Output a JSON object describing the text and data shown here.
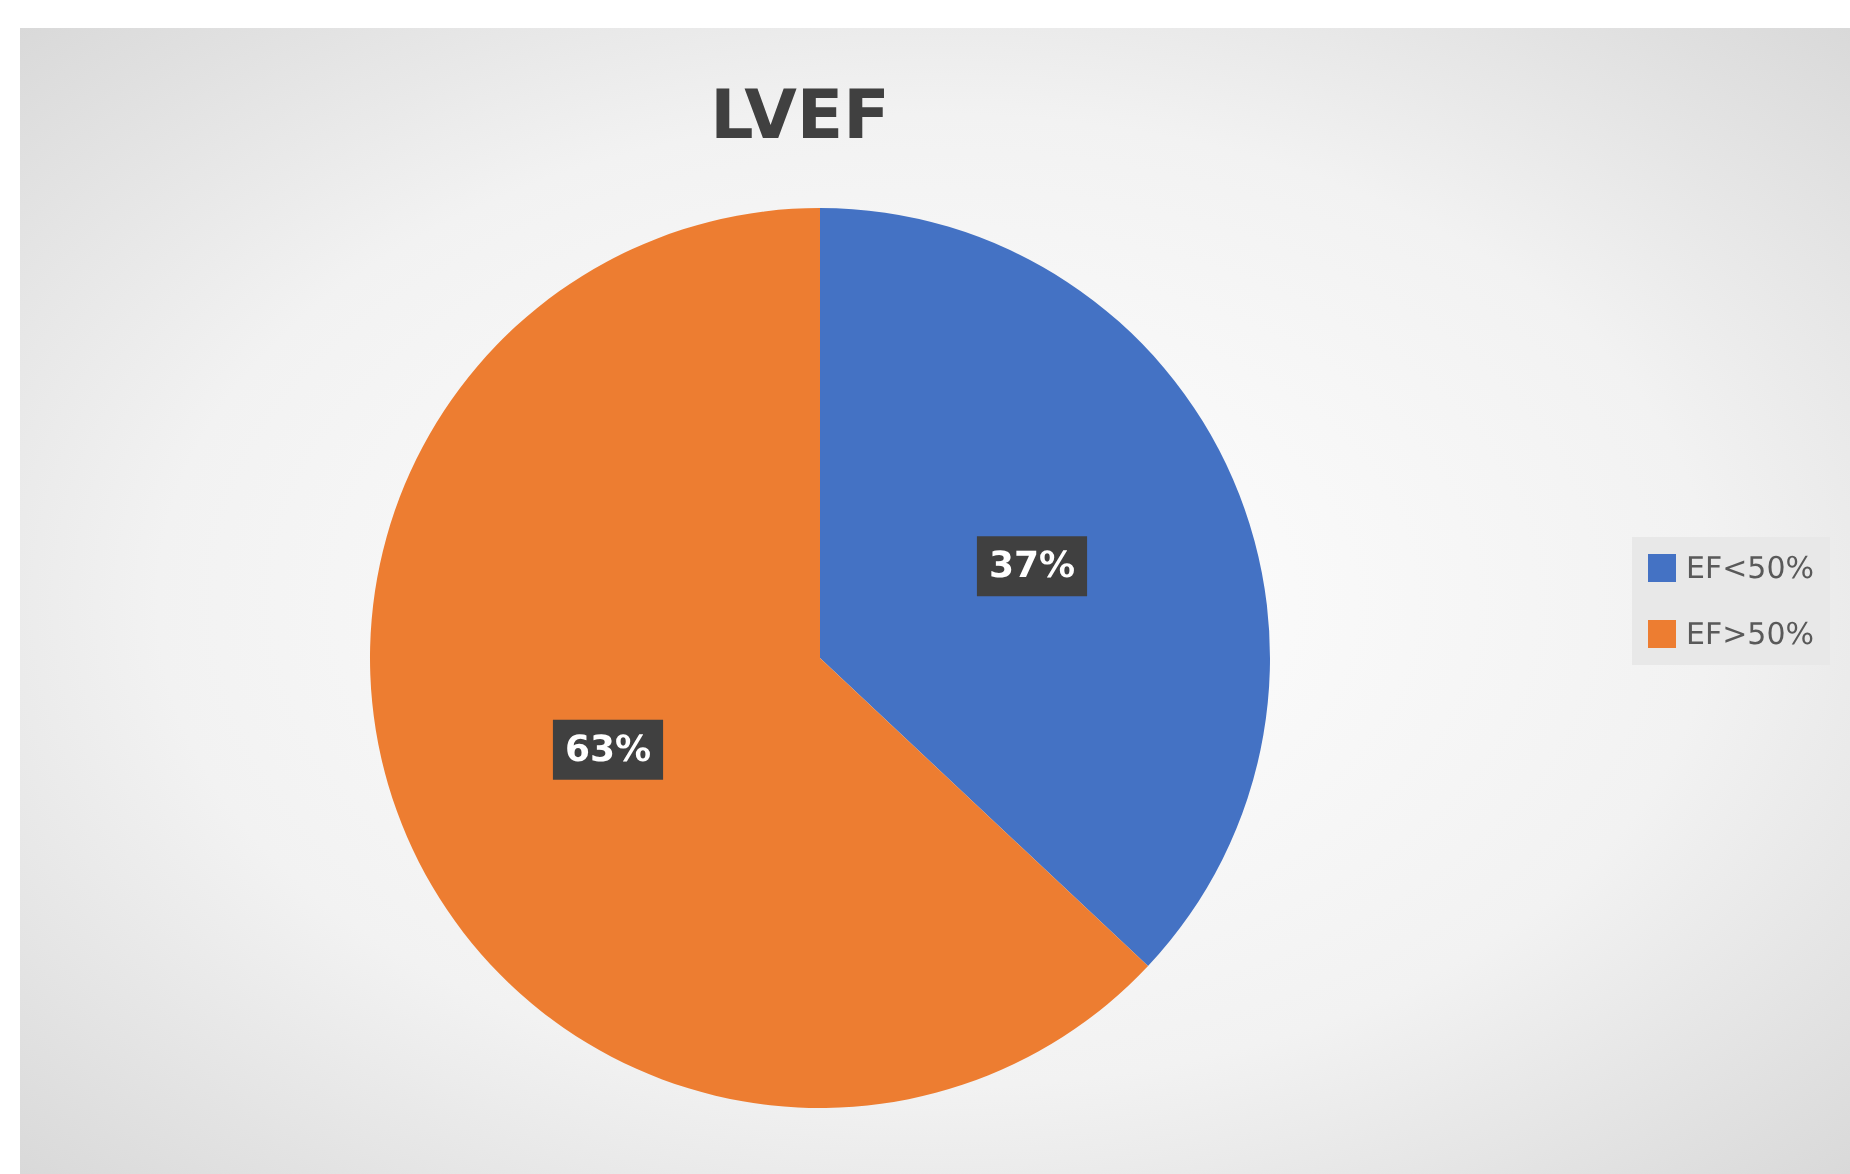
{
  "chart_data": {
    "type": "pie",
    "title": "LVEF",
    "categories": [
      "EF<50%",
      "EF>50%"
    ],
    "values": [
      37,
      63
    ],
    "colors": [
      "#4472c4",
      "#ed7d31"
    ],
    "value_labels": [
      "37%",
      "63%"
    ],
    "legend": "right"
  }
}
